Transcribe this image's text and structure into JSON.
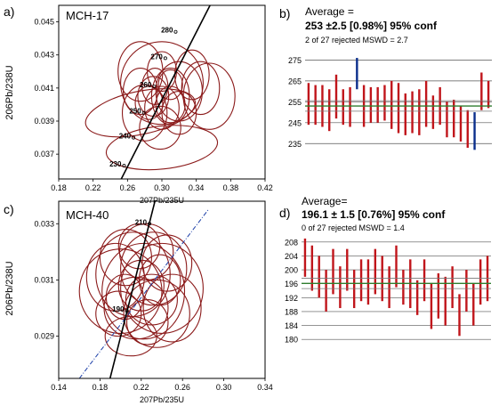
{
  "panels": [
    {
      "id": "a",
      "label": "a)",
      "sample": "MCH-17",
      "chart_data": {
        "type": "scatter",
        "title": "MCH-17",
        "xlabel": "207Pb/235U",
        "ylabel": "206Pb/238U",
        "xlim": [
          0.18,
          0.42
        ],
        "ylim": [
          0.0355,
          0.046
        ],
        "xticks": [
          0.18,
          0.22,
          0.26,
          0.3,
          0.34,
          0.38,
          0.42
        ],
        "yticks": [
          0.037,
          0.039,
          0.041,
          0.043,
          0.045
        ],
        "xtick_labels": [
          "0.18",
          "0.22",
          "0.26",
          "0.30",
          "0.34",
          "0.38",
          "0.42"
        ],
        "ytick_labels": [
          "0.037",
          "0.039",
          "0.041",
          "0.043",
          "0.045"
        ],
        "concordia": [
          {
            "age": "230",
            "x": 0.256,
            "y": 0.0363
          },
          {
            "age": "240",
            "x": 0.267,
            "y": 0.038
          },
          {
            "age": "250",
            "x": 0.279,
            "y": 0.0395
          },
          {
            "age": "260",
            "x": 0.291,
            "y": 0.0411
          },
          {
            "age": "270",
            "x": 0.304,
            "y": 0.0428
          },
          {
            "age": "280",
            "x": 0.316,
            "y": 0.0444
          }
        ],
        "concordia_line": [
          [
            0.238,
            0.034
          ],
          [
            0.356,
            0.046
          ]
        ],
        "ellipses": [
          {
            "cx": 0.3,
            "cy": 0.0374,
            "rx": 0.065,
            "ry": 0.0013,
            "rot": -6
          },
          {
            "cx": 0.275,
            "cy": 0.0395,
            "rx": 0.065,
            "ry": 0.0013,
            "rot": -12
          },
          {
            "cx": 0.3,
            "cy": 0.0413,
            "rx": 0.048,
            "ry": 0.0025,
            "rot": 0
          },
          {
            "cx": 0.275,
            "cy": 0.042,
            "rx": 0.026,
            "ry": 0.0018,
            "rot": 0
          },
          {
            "cx": 0.28,
            "cy": 0.0395,
            "rx": 0.026,
            "ry": 0.0017,
            "rot": 0
          },
          {
            "cx": 0.29,
            "cy": 0.0405,
            "rx": 0.018,
            "ry": 0.0012,
            "rot": 0
          },
          {
            "cx": 0.31,
            "cy": 0.0405,
            "rx": 0.022,
            "ry": 0.0017,
            "rot": 0
          },
          {
            "cx": 0.3,
            "cy": 0.0398,
            "rx": 0.02,
            "ry": 0.0013,
            "rot": 0
          },
          {
            "cx": 0.292,
            "cy": 0.0411,
            "rx": 0.015,
            "ry": 0.0011,
            "rot": 0
          },
          {
            "cx": 0.32,
            "cy": 0.0408,
            "rx": 0.027,
            "ry": 0.0018,
            "rot": 0
          },
          {
            "cx": 0.345,
            "cy": 0.041,
            "rx": 0.022,
            "ry": 0.0016,
            "rot": 0
          },
          {
            "cx": 0.355,
            "cy": 0.0405,
            "rx": 0.03,
            "ry": 0.002,
            "rot": 0
          },
          {
            "cx": 0.335,
            "cy": 0.0418,
            "rx": 0.02,
            "ry": 0.0015,
            "rot": 0
          },
          {
            "cx": 0.31,
            "cy": 0.04,
            "rx": 0.017,
            "ry": 0.0011,
            "rot": 0
          },
          {
            "cx": 0.285,
            "cy": 0.0401,
            "rx": 0.016,
            "ry": 0.001,
            "rot": 0
          },
          {
            "cx": 0.3,
            "cy": 0.042,
            "rx": 0.017,
            "ry": 0.0012,
            "rot": 0
          },
          {
            "cx": 0.275,
            "cy": 0.0408,
            "rx": 0.02,
            "ry": 0.0014,
            "rot": 0
          },
          {
            "cx": 0.32,
            "cy": 0.0395,
            "rx": 0.02,
            "ry": 0.0013,
            "rot": 0
          },
          {
            "cx": 0.298,
            "cy": 0.0386,
            "rx": 0.024,
            "ry": 0.0013,
            "rot": 0
          },
          {
            "cx": 0.31,
            "cy": 0.0412,
            "rx": 0.014,
            "ry": 0.0009,
            "rot": 0
          }
        ]
      }
    },
    {
      "id": "b",
      "label": "b)",
      "avg_title": "Average =",
      "avg_value": "253 ±2.5 [0.98%] 95% conf",
      "avg_note": "2 of 27 rejected MSWD = 2.7",
      "chart_data": {
        "type": "bar",
        "ylim": [
          230,
          279
        ],
        "yticks": [
          235,
          245,
          255,
          265,
          275
        ],
        "ytick_labels": [
          "235",
          "245",
          "255",
          "265",
          "275"
        ],
        "mean": 253,
        "band": [
          250.5,
          255.5
        ],
        "values": [
          {
            "lo": 244,
            "hi": 264,
            "rejected": false
          },
          {
            "lo": 244,
            "hi": 263,
            "rejected": false
          },
          {
            "lo": 243,
            "hi": 263,
            "rejected": false
          },
          {
            "lo": 241,
            "hi": 261,
            "rejected": false
          },
          {
            "lo": 247,
            "hi": 268,
            "rejected": false
          },
          {
            "lo": 244,
            "hi": 261,
            "rejected": false
          },
          {
            "lo": 243,
            "hi": 262,
            "rejected": false
          },
          {
            "lo": 261,
            "hi": 276,
            "rejected": true
          },
          {
            "lo": 243,
            "hi": 263,
            "rejected": false
          },
          {
            "lo": 245,
            "hi": 262,
            "rejected": false
          },
          {
            "lo": 245,
            "hi": 262,
            "rejected": false
          },
          {
            "lo": 246,
            "hi": 263,
            "rejected": false
          },
          {
            "lo": 242,
            "hi": 265,
            "rejected": false
          },
          {
            "lo": 240,
            "hi": 264,
            "rejected": false
          },
          {
            "lo": 239,
            "hi": 259,
            "rejected": false
          },
          {
            "lo": 240,
            "hi": 260,
            "rejected": false
          },
          {
            "lo": 239,
            "hi": 261,
            "rejected": false
          },
          {
            "lo": 243,
            "hi": 265,
            "rejected": false
          },
          {
            "lo": 242,
            "hi": 258,
            "rejected": false
          },
          {
            "lo": 244,
            "hi": 262,
            "rejected": false
          },
          {
            "lo": 238,
            "hi": 255,
            "rejected": false
          },
          {
            "lo": 238,
            "hi": 256,
            "rejected": false
          },
          {
            "lo": 236,
            "hi": 253,
            "rejected": false
          },
          {
            "lo": 233,
            "hi": 251,
            "rejected": false
          },
          {
            "lo": 232,
            "hi": 250,
            "rejected": true
          },
          {
            "lo": 251,
            "hi": 269,
            "rejected": false
          },
          {
            "lo": 252,
            "hi": 265,
            "rejected": false
          }
        ]
      }
    },
    {
      "id": "c",
      "label": "c)",
      "sample": "MCH-40",
      "chart_data": {
        "type": "scatter",
        "title": "MCH-40",
        "xlabel": "207Pb/235U",
        "ylabel": "206Pb/238U",
        "xlim": [
          0.14,
          0.34
        ],
        "ylim": [
          0.0275,
          0.0338
        ],
        "xticks": [
          0.14,
          0.18,
          0.22,
          0.26,
          0.3,
          0.34
        ],
        "yticks": [
          0.029,
          0.031,
          0.033
        ],
        "xtick_labels": [
          "0.14",
          "0.18",
          "0.22",
          "0.26",
          "0.30",
          "0.34"
        ],
        "ytick_labels": [
          "0.029",
          "0.031",
          "0.033"
        ],
        "concordia": [
          {
            "age": "190",
            "x": 0.206,
            "y": 0.0299
          },
          {
            "age": "210",
            "x": 0.228,
            "y": 0.033
          }
        ],
        "concordia_line": [
          [
            0.187,
            0.0271
          ],
          [
            0.245,
            0.0355
          ]
        ],
        "discordia_line": [
          [
            0.16,
            0.0275
          ],
          [
            0.285,
            0.0335
          ]
        ],
        "ellipses": [
          {
            "cx": 0.2,
            "cy": 0.0306,
            "rx": 0.04,
            "ry": 0.0015,
            "rot": 0
          },
          {
            "cx": 0.222,
            "cy": 0.0306,
            "rx": 0.04,
            "ry": 0.0017,
            "rot": 0
          },
          {
            "cx": 0.24,
            "cy": 0.0307,
            "rx": 0.04,
            "ry": 0.0016,
            "rot": 0
          },
          {
            "cx": 0.212,
            "cy": 0.0312,
            "rx": 0.036,
            "ry": 0.0015,
            "rot": 0
          },
          {
            "cx": 0.232,
            "cy": 0.0314,
            "rx": 0.032,
            "ry": 0.0013,
            "rot": 0
          },
          {
            "cx": 0.215,
            "cy": 0.03,
            "rx": 0.031,
            "ry": 0.0011,
            "rot": 0
          },
          {
            "cx": 0.235,
            "cy": 0.0298,
            "rx": 0.032,
            "ry": 0.0012,
            "rot": 0
          },
          {
            "cx": 0.205,
            "cy": 0.0318,
            "rx": 0.025,
            "ry": 0.001,
            "rot": 0
          },
          {
            "cx": 0.225,
            "cy": 0.032,
            "rx": 0.026,
            "ry": 0.001,
            "rot": 0
          },
          {
            "cx": 0.198,
            "cy": 0.0298,
            "rx": 0.022,
            "ry": 0.0008,
            "rot": 0
          },
          {
            "cx": 0.22,
            "cy": 0.0308,
            "rx": 0.022,
            "ry": 0.0009,
            "rot": 0
          },
          {
            "cx": 0.245,
            "cy": 0.0316,
            "rx": 0.024,
            "ry": 0.001,
            "rot": 0
          },
          {
            "cx": 0.195,
            "cy": 0.0311,
            "rx": 0.028,
            "ry": 0.0012,
            "rot": 0
          },
          {
            "cx": 0.23,
            "cy": 0.0303,
            "rx": 0.025,
            "ry": 0.0009,
            "rot": 0
          },
          {
            "cx": 0.21,
            "cy": 0.029,
            "rx": 0.025,
            "ry": 0.0007,
            "rot": 0
          },
          {
            "cx": 0.25,
            "cy": 0.03,
            "rx": 0.028,
            "ry": 0.0012,
            "rot": 0
          },
          {
            "cx": 0.218,
            "cy": 0.0322,
            "rx": 0.02,
            "ry": 0.0008,
            "rot": 0
          },
          {
            "cx": 0.204,
            "cy": 0.0304,
            "rx": 0.018,
            "ry": 0.0008,
            "rot": 0
          },
          {
            "cx": 0.238,
            "cy": 0.031,
            "rx": 0.02,
            "ry": 0.0009,
            "rot": 0
          },
          {
            "cx": 0.226,
            "cy": 0.0295,
            "rx": 0.02,
            "ry": 0.0008,
            "rot": 0
          }
        ]
      }
    },
    {
      "id": "d",
      "label": "d)",
      "avg_title": "Average=",
      "avg_value": "196.1 ± 1.5 [0.76%] 95% conf",
      "avg_note": "0 of 27 rejected MSWD = 1.4",
      "chart_data": {
        "type": "bar",
        "ylim": [
          178,
          210
        ],
        "yticks": [
          180,
          184,
          188,
          192,
          196,
          200,
          204,
          208
        ],
        "ytick_labels": [
          "180",
          "184",
          "188",
          "192",
          "196",
          "200",
          "204",
          "208"
        ],
        "mean": 196.1,
        "band": [
          194.6,
          197.6
        ],
        "values": [
          {
            "lo": 198,
            "hi": 209,
            "rejected": false
          },
          {
            "lo": 194,
            "hi": 207,
            "rejected": false
          },
          {
            "lo": 192,
            "hi": 204,
            "rejected": false
          },
          {
            "lo": 188,
            "hi": 200,
            "rejected": false
          },
          {
            "lo": 193,
            "hi": 206,
            "rejected": false
          },
          {
            "lo": 189,
            "hi": 201,
            "rejected": false
          },
          {
            "lo": 194,
            "hi": 206,
            "rejected": false
          },
          {
            "lo": 189,
            "hi": 200,
            "rejected": false
          },
          {
            "lo": 191,
            "hi": 203,
            "rejected": false
          },
          {
            "lo": 190,
            "hi": 203,
            "rejected": false
          },
          {
            "lo": 193,
            "hi": 206,
            "rejected": false
          },
          {
            "lo": 191,
            "hi": 204,
            "rejected": false
          },
          {
            "lo": 189,
            "hi": 201,
            "rejected": false
          },
          {
            "lo": 195,
            "hi": 207,
            "rejected": false
          },
          {
            "lo": 190,
            "hi": 200,
            "rejected": false
          },
          {
            "lo": 189,
            "hi": 203,
            "rejected": false
          },
          {
            "lo": 187,
            "hi": 197,
            "rejected": false
          },
          {
            "lo": 191,
            "hi": 203,
            "rejected": false
          },
          {
            "lo": 183,
            "hi": 196,
            "rejected": false
          },
          {
            "lo": 186,
            "hi": 199,
            "rejected": false
          },
          {
            "lo": 184,
            "hi": 198,
            "rejected": false
          },
          {
            "lo": 189,
            "hi": 201,
            "rejected": false
          },
          {
            "lo": 181,
            "hi": 193,
            "rejected": false
          },
          {
            "lo": 188,
            "hi": 200,
            "rejected": false
          },
          {
            "lo": 184,
            "hi": 196,
            "rejected": false
          },
          {
            "lo": 190,
            "hi": 203,
            "rejected": false
          },
          {
            "lo": 191,
            "hi": 204,
            "rejected": false
          }
        ]
      }
    }
  ],
  "colors": {
    "ellipse": "#8b1a1a",
    "bar": "#c0151b",
    "rejected_bar": "#0b2f8c",
    "mean_line": "#2e7d2e",
    "grid": "#555555",
    "concordia": "#000000",
    "discordia": "#1c3fa8"
  }
}
